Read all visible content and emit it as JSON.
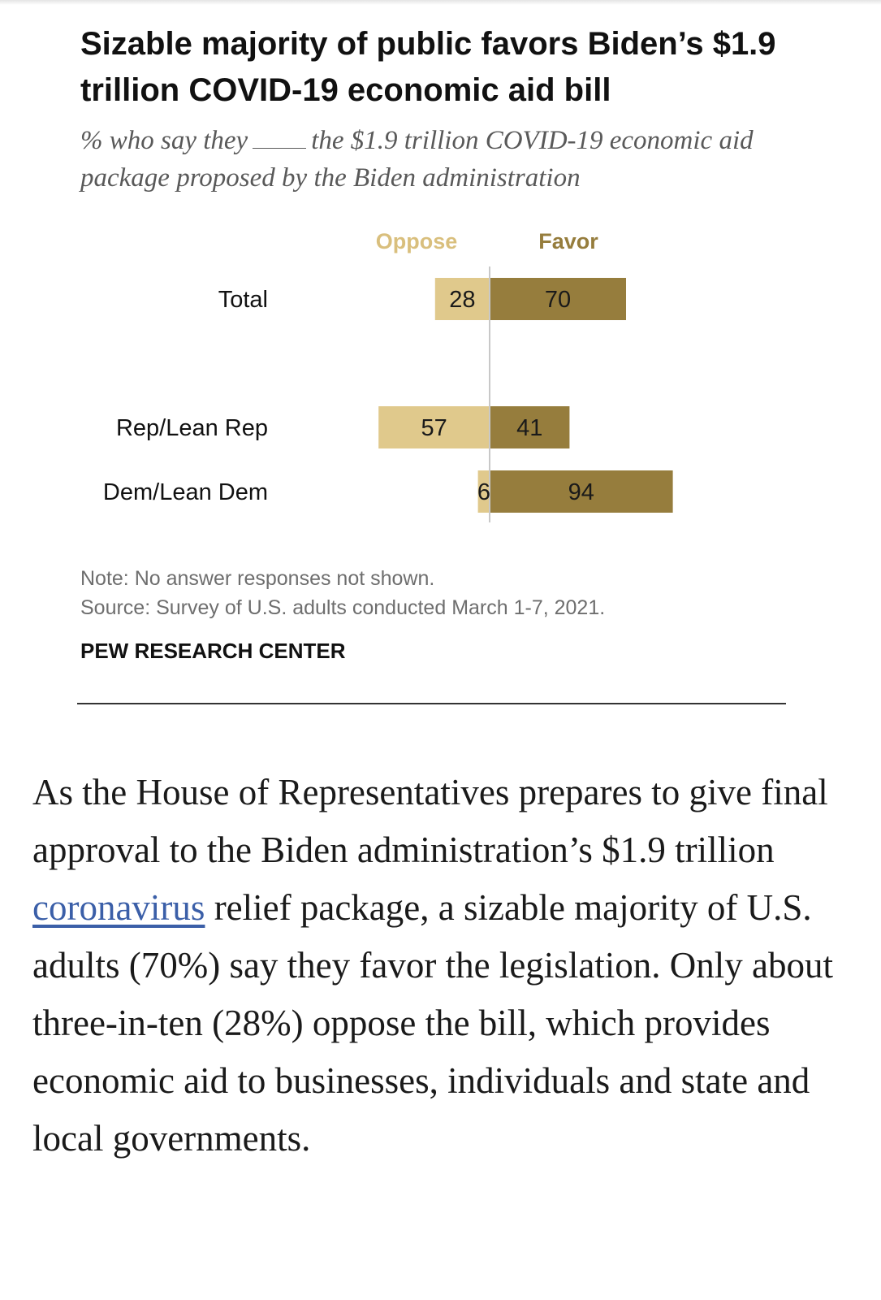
{
  "title": "Sizable majority of public favors Biden’s $1.9 trillion COVID-19 economic aid bill",
  "subtitle": {
    "before": "% who say they",
    "after": "the $1.9 trillion COVID-19 economic aid package proposed by the Biden administration"
  },
  "chart_data": {
    "type": "bar",
    "orientation": "horizontal-diverging",
    "categories": [
      "Total",
      "Rep/Lean Rep",
      "Dem/Lean Dem"
    ],
    "series": [
      {
        "name": "Oppose",
        "values": [
          28,
          57,
          6
        ],
        "color": "#e0c98c"
      },
      {
        "name": "Favor",
        "values": [
          70,
          41,
          94
        ],
        "color": "#967d3d"
      }
    ],
    "label_color": "#1a1a1a",
    "axis_color": "#c8c8c8",
    "legend_position": "top"
  },
  "notes": {
    "note": "Note: No answer responses not shown.",
    "source": "Source: Survey of U.S. adults conducted March 1-7, 2021."
  },
  "brand": "PEW RESEARCH CENTER",
  "article": {
    "before": "As the House of Representatives prepares to give final approval to the Biden administration’s $1.9 trillion ",
    "link": "coronavirus",
    "after": " relief package, a sizable majority of U.S. adults (70%) say they favor the legislation. Only about three-in-ten (28%) oppose the bill, which provides economic aid to businesses, individuals and state and local governments."
  }
}
